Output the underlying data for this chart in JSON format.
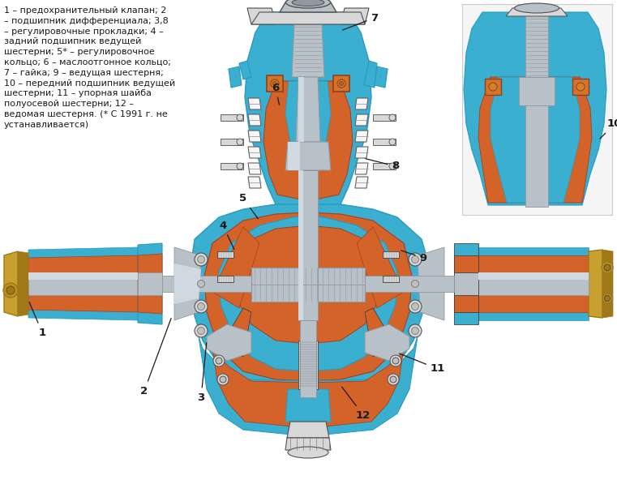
{
  "bg_color": "#ffffff",
  "fig_width": 7.61,
  "fig_height": 5.92,
  "dpi": 100,
  "legend_text": "1 – предохранительный клапан; 2\n– подшипник дифференциала; 3,8\n– регулировочные прокладки; 4 –\nзадний подшипник ведущей\nшестерни; 5* – регулировочное\nкольцо; 6 – маслоотгонное кольцо;\n7 – гайка; 9 – ведущая шестерня;\n10 – передний подшипник ведущей\nшестерни; 11 – упорная шайба\nполуосевой шестерни; 12 –\nведомая шестерня. (* С 1991 г. не\nустанавливается)",
  "blue": "#3aafcf",
  "blue2": "#2a9abf",
  "orange": "#d4632a",
  "orange2": "#c05020",
  "silver": "#b8c0c8",
  "silver2": "#9098a0",
  "silver3": "#d0d8e0",
  "gold": "#c8a030",
  "gold2": "#a07818",
  "dark": "#303030",
  "white": "#f5f5f5",
  "lgray": "#d8d8d8",
  "label_color": "#1a1a1a"
}
